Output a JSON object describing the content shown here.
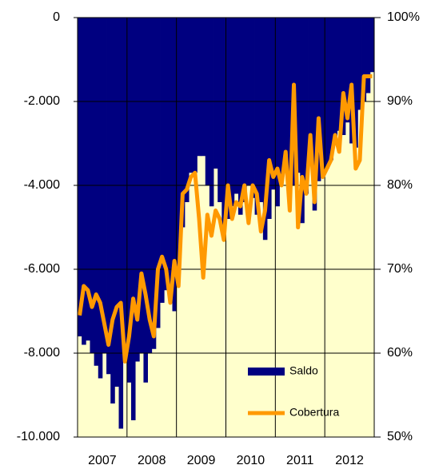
{
  "chart_data": {
    "type": "bar_line",
    "categories": [
      null,
      null,
      null,
      null,
      null,
      null,
      "2007",
      null,
      null,
      null,
      null,
      null,
      null,
      null,
      null,
      null,
      null,
      null,
      "2008",
      null,
      null,
      null,
      null,
      null,
      null,
      null,
      null,
      null,
      null,
      null,
      "2009",
      null,
      null,
      null,
      null,
      null,
      null,
      null,
      null,
      null,
      null,
      null,
      "2010",
      null,
      null,
      null,
      null,
      null,
      null,
      null,
      null,
      null,
      null,
      null,
      "2011",
      null,
      null,
      null,
      null,
      null,
      null,
      null,
      null,
      null,
      null,
      null,
      "2012",
      null,
      null,
      null,
      null,
      null
    ],
    "series": [
      {
        "name": "Saldo",
        "color": "#000080",
        "kind": "bar",
        "values": [
          -7600,
          -7800,
          -7700,
          -8000,
          -8300,
          -8600,
          -8000,
          -8500,
          -9200,
          -8800,
          -9800,
          -8100,
          -8700,
          -9600,
          -8200,
          -8000,
          -8700,
          -8000,
          -7900,
          -7400,
          -6800,
          -6500,
          -6500,
          -7000,
          -6100,
          -5000,
          -4400,
          -3700,
          -3700,
          -3300,
          -3300,
          -4000,
          -4500,
          -3600,
          -4400,
          -5100,
          -4800,
          -4500,
          -4200,
          -4700,
          -4400,
          -4000,
          -4300,
          -4700,
          -4400,
          -5300,
          -4800,
          -4100,
          -4500,
          -3800,
          -3600,
          -3800,
          -4000,
          -3700,
          -4900,
          -4200,
          -3500,
          -4600,
          -3900,
          -3700,
          -3600,
          -3400,
          -3000,
          -2700,
          -2800,
          -2500,
          -3000,
          -3100,
          -2200,
          -2000,
          -1800,
          -1300
        ]
      },
      {
        "name": "Cobertura",
        "color": "#ff9900",
        "kind": "line",
        "axis": "y2",
        "values": [
          64.5,
          68,
          67.5,
          65.5,
          67,
          66,
          63.5,
          61,
          64,
          65.5,
          66,
          59,
          62,
          66.5,
          64,
          69.5,
          67,
          64,
          62,
          70,
          71.5,
          70,
          66,
          71,
          68,
          79,
          79.5,
          81,
          81.5,
          76,
          69,
          76.5,
          74,
          77,
          76,
          73.5,
          80,
          76,
          78,
          77.5,
          80,
          75.5,
          80,
          79,
          74.5,
          77,
          83,
          81,
          82,
          80,
          84,
          77,
          92,
          75,
          81,
          79,
          86,
          78,
          88,
          81,
          82,
          83,
          86,
          84,
          91,
          88,
          92,
          82,
          83,
          93,
          93,
          93
        ]
      }
    ],
    "ylim": [
      -10000,
      0
    ],
    "yticks": [
      {
        "value": -10000,
        "label": "-10.000"
      },
      {
        "value": -8000,
        "label": "-8.000"
      },
      {
        "value": -6000,
        "label": "-6.000"
      },
      {
        "value": -4000,
        "label": "-4.000"
      },
      {
        "value": -2000,
        "label": "-2.000"
      },
      0
    ],
    "y2lim": [
      50,
      100
    ],
    "y2ticks": [
      {
        "value": 50,
        "label": "50%"
      },
      {
        "value": 60,
        "label": "60%"
      },
      {
        "value": 70,
        "label": "70%"
      },
      {
        "value": 80,
        "label": "80%"
      },
      {
        "value": 90,
        "label": "90%"
      },
      {
        "value": 100,
        "label": "100%"
      }
    ],
    "grid": true,
    "background": "#ffffcc",
    "legend": "lower right"
  }
}
